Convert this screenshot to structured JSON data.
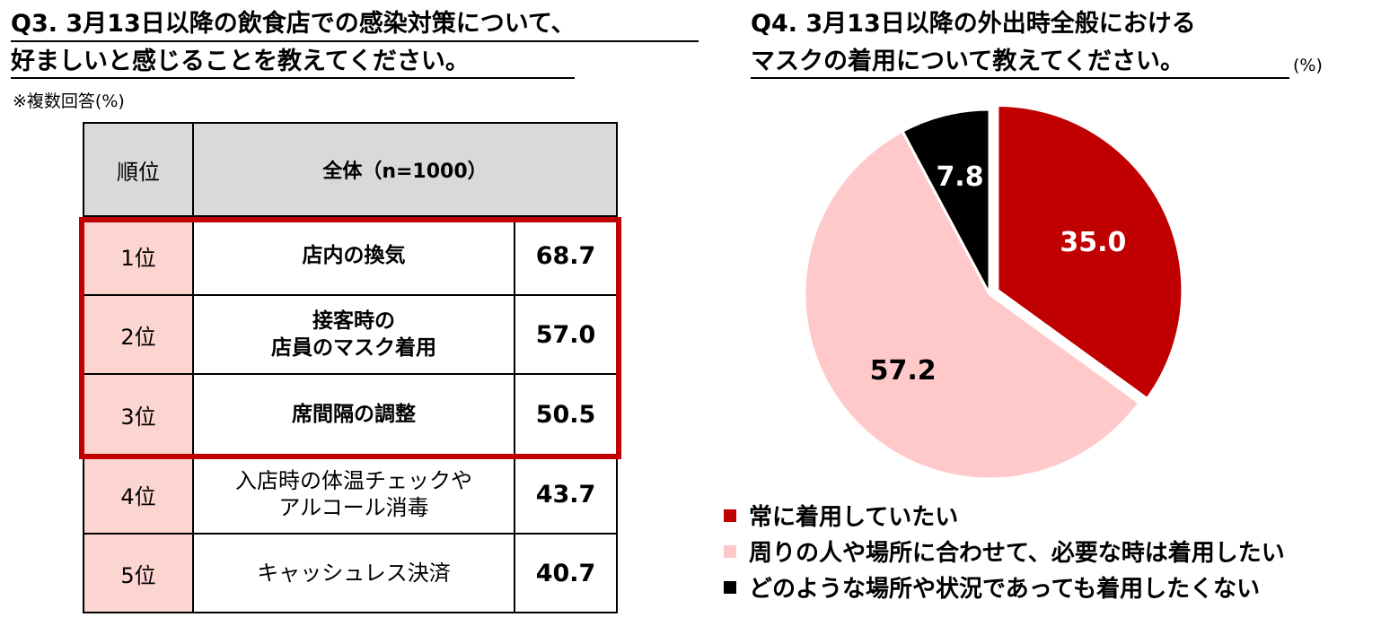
{
  "left": {
    "title_line1": "Q3. 3月13日以降の飲食店での感染対策について、",
    "title_line2": "好ましいと感じることを教えてください。",
    "note": "※複数回答(%)",
    "table": {
      "header_rank": "順位",
      "header_all": "全体（n=1000）",
      "rows": [
        {
          "rank": "1位",
          "item_line1": "店内の換気",
          "item_line2": "",
          "value": "68.7"
        },
        {
          "rank": "2位",
          "item_line1": "接客時の",
          "item_line2": "店員のマスク着用",
          "value": "57.0"
        },
        {
          "rank": "3位",
          "item_line1": "席間隔の調整",
          "item_line2": "",
          "value": "50.5"
        },
        {
          "rank": "4位",
          "item_line1": "入店時の体温チェックや",
          "item_line2": "アルコール消毒",
          "value": "43.7"
        },
        {
          "rank": "5位",
          "item_line1": "キャッシュレス決済",
          "item_line2": "",
          "value": "40.7"
        }
      ]
    }
  },
  "right": {
    "title_line1": "Q4. 3月13日以降の外出時全般における",
    "title_line2": "マスクの着用について教えてください。",
    "unit": "(%)"
  },
  "colors": {
    "red": "#c00000",
    "pink": "#ffc9c9",
    "black": "#000000",
    "highlight_border": "#c00000",
    "rank_bg": "#fcd5d1",
    "header_bg": "#d9d9d9"
  },
  "chart_data": {
    "type": "pie",
    "unit": "%",
    "slices": [
      {
        "name": "常に着用していたい",
        "value": 35.0,
        "label": "35.0",
        "color": "#c00000",
        "label_color": "#ffffff"
      },
      {
        "name": "周りの人や場所に合わせて、必要な時は着用したい",
        "value": 57.2,
        "label": "57.2",
        "color": "#ffc9c9",
        "label_color": "#000000"
      },
      {
        "name": "どのような場所や状況であっても着用したくない",
        "value": 7.8,
        "label": "7.8",
        "color": "#000000",
        "label_color": "#ffffff"
      }
    ],
    "legend_position": "bottom-left",
    "start_angle": "12 o'clock, clockwise",
    "exploded_slice": "常に着用していたい"
  }
}
